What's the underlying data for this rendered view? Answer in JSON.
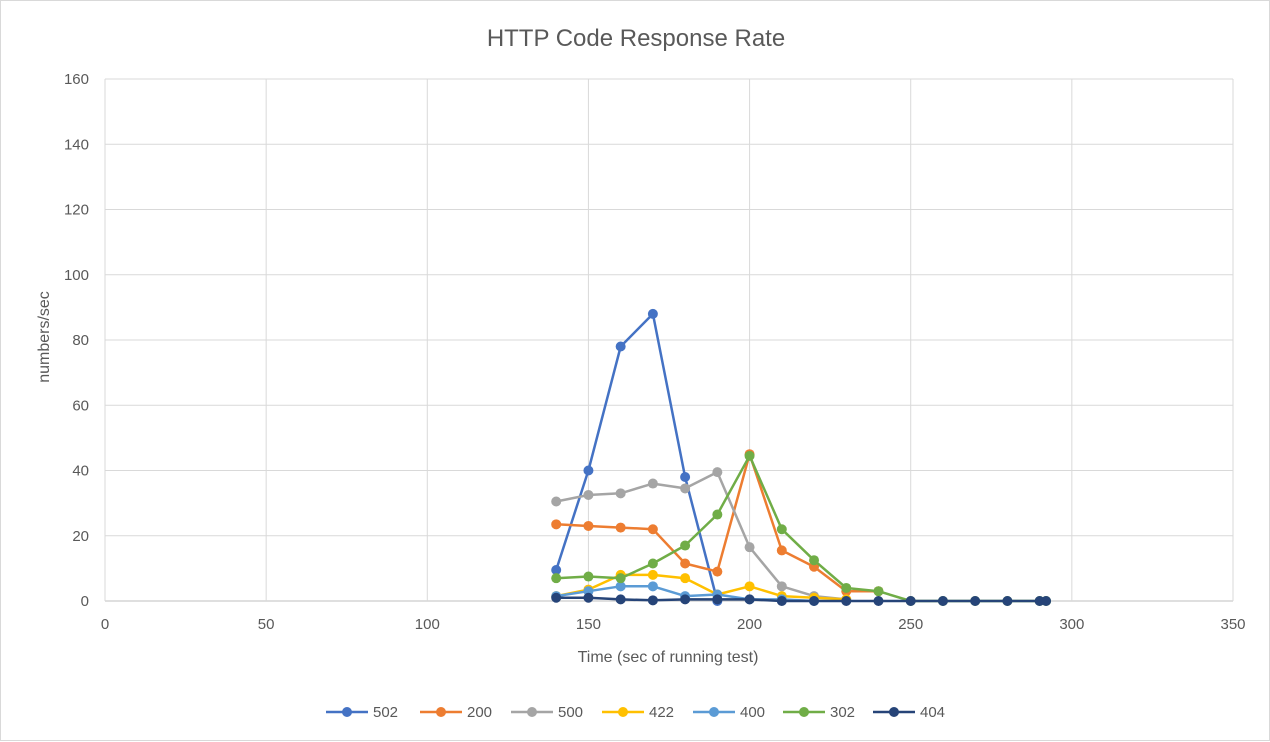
{
  "chart_data": {
    "type": "scatter",
    "title": "HTTP Code Response Rate",
    "xlabel": "Time (sec of running test)",
    "ylabel": "numbers/sec",
    "xlim": [
      0,
      350
    ],
    "ylim": [
      0,
      160
    ],
    "xticks": [
      0,
      50,
      100,
      150,
      200,
      250,
      300,
      350
    ],
    "yticks": [
      0,
      20,
      40,
      60,
      80,
      100,
      120,
      140,
      160
    ],
    "grid": true,
    "legend": "bottom",
    "series": [
      {
        "name": "502",
        "color": "#4472c4",
        "x": [
          140,
          150,
          160,
          170,
          180,
          190
        ],
        "y": [
          9.5,
          40,
          78,
          88,
          38,
          0
        ]
      },
      {
        "name": "200",
        "color": "#ed7d31",
        "x": [
          140,
          150,
          160,
          170,
          180,
          190,
          200,
          210,
          220,
          230,
          240
        ],
        "y": [
          23.5,
          23,
          22.5,
          22,
          11.5,
          9,
          45,
          15.5,
          10.5,
          3,
          3
        ]
      },
      {
        "name": "500",
        "color": "#a5a5a5",
        "x": [
          140,
          150,
          160,
          170,
          180,
          190,
          200,
          210,
          220,
          230
        ],
        "y": [
          30.5,
          32.5,
          33,
          36,
          34.5,
          39.5,
          16.5,
          4.5,
          1.5,
          0.5
        ]
      },
      {
        "name": "422",
        "color": "#ffc000",
        "x": [
          140,
          150,
          160,
          170,
          180,
          190,
          200,
          210,
          220,
          230
        ],
        "y": [
          1.5,
          3.5,
          8,
          8,
          7,
          2,
          4.5,
          1.5,
          1,
          0.5
        ]
      },
      {
        "name": "400",
        "color": "#5b9bd5",
        "x": [
          140,
          150,
          160,
          170,
          180,
          190,
          200,
          210,
          220
        ],
        "y": [
          1.5,
          3,
          4.5,
          4.5,
          1.5,
          2,
          0.5,
          0.5,
          0
        ]
      },
      {
        "name": "302",
        "color": "#70ad47",
        "x": [
          140,
          150,
          160,
          170,
          180,
          190,
          200,
          210,
          220,
          230,
          240,
          250,
          260,
          270,
          280,
          290,
          292
        ],
        "y": [
          7,
          7.5,
          7,
          11.5,
          17,
          26.5,
          44.5,
          22,
          12.5,
          4,
          3,
          0,
          0,
          0,
          0,
          0,
          0
        ]
      },
      {
        "name": "404",
        "color": "#264478",
        "x": [
          140,
          150,
          160,
          170,
          180,
          190,
          200,
          210,
          220,
          230,
          240,
          250,
          260,
          270,
          280,
          290,
          292
        ],
        "y": [
          1,
          1,
          0.5,
          0.2,
          0.5,
          0.5,
          0.5,
          0,
          0,
          0,
          0,
          0,
          0,
          0,
          0,
          0,
          0
        ]
      }
    ]
  }
}
